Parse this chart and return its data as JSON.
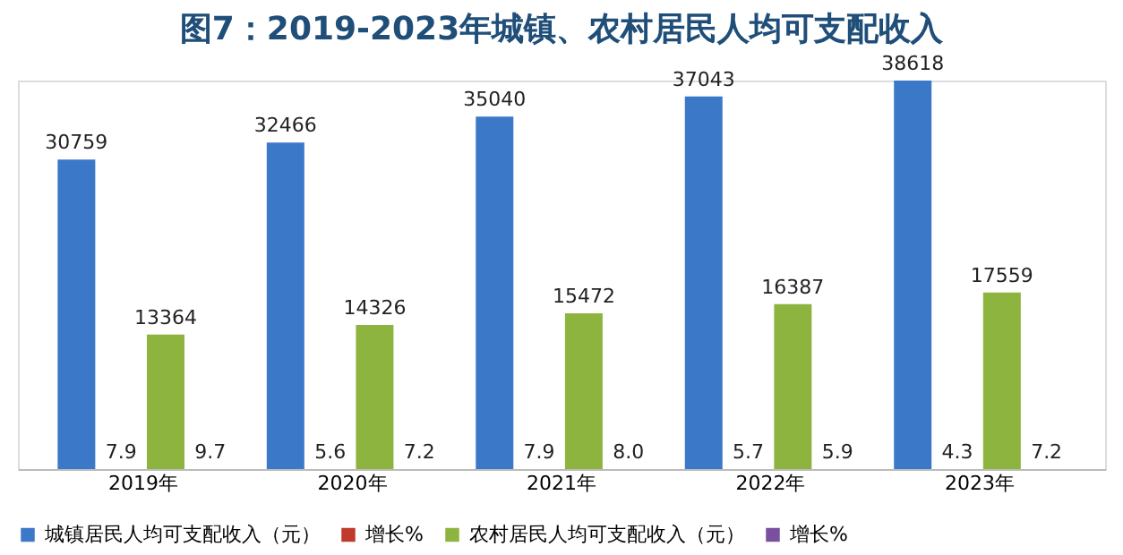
{
  "chart_data": {
    "type": "bar",
    "title": "图7：2019-2023年城镇、农村居民人均可支配收入",
    "categories": [
      "2019年",
      "2020年",
      "2021年",
      "2022年",
      "2023年"
    ],
    "series": [
      {
        "name": "城镇居民人均可支配收入（元）",
        "color": "#3b78c8",
        "values": [
          30759,
          32466,
          35040,
          37043,
          38618
        ],
        "value_labels": [
          "30759",
          "32466",
          "35040",
          "37043",
          "38618"
        ]
      },
      {
        "name": "增长%",
        "color": "#c0392b",
        "values": [
          7.9,
          5.6,
          7.9,
          5.7,
          4.3
        ],
        "value_labels": [
          "7.9",
          "5.6",
          "7.9",
          "5.7",
          "4.3"
        ]
      },
      {
        "name": "农村居民人均可支配收入（元）",
        "color": "#8db43e",
        "values": [
          13364,
          14326,
          15472,
          16387,
          17559
        ],
        "value_labels": [
          "13364",
          "14326",
          "15472",
          "16387",
          "17559"
        ]
      },
      {
        "name": "增长%",
        "color": "#7a4fa0",
        "values": [
          9.7,
          7.2,
          8.0,
          5.9,
          7.2
        ],
        "value_labels": [
          "9.7",
          "7.2",
          "8.0",
          "5.9",
          "7.2"
        ]
      }
    ],
    "legend": "bottom"
  }
}
